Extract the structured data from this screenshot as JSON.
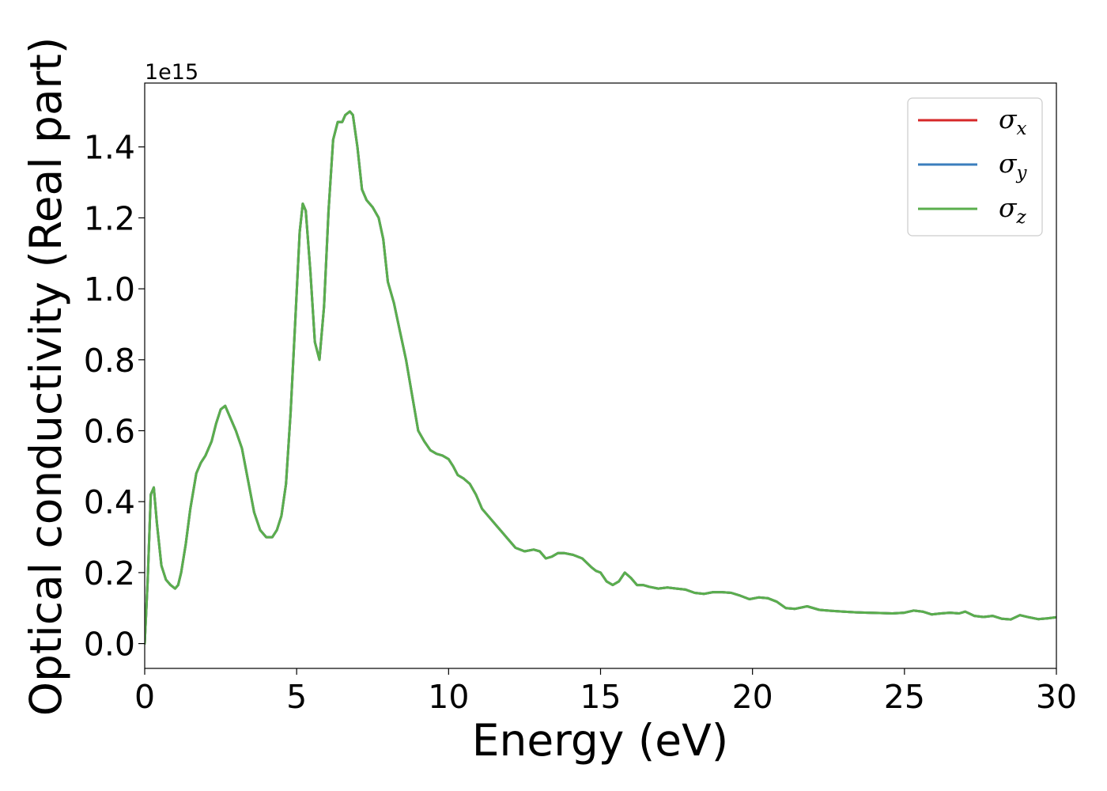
{
  "chart_data": {
    "type": "line",
    "xlabel": "Energy (eV)",
    "ylabel": "Optical conductivity (Real part)",
    "y_offset_text": "1e15",
    "xlim": [
      0,
      30
    ],
    "ylim": [
      -0.07,
      1.58
    ],
    "xticks": [
      0,
      5,
      10,
      15,
      20,
      25,
      30
    ],
    "xtick_labels": [
      "0",
      "5",
      "10",
      "15",
      "20",
      "25",
      "30"
    ],
    "yticks": [
      0.0,
      0.2,
      0.4,
      0.6,
      0.8,
      1.0,
      1.2,
      1.4
    ],
    "ytick_labels": [
      "0.0",
      "0.2",
      "0.4",
      "0.6",
      "0.8",
      "1.0",
      "1.2",
      "1.4"
    ],
    "grid": false,
    "legend_position": "top-right",
    "colors": {
      "sigma_x": "#d62728",
      "sigma_y": "#3b7ebd",
      "sigma_z": "#5aae4d"
    },
    "x": [
      0.0,
      0.1,
      0.2,
      0.3,
      0.4,
      0.55,
      0.7,
      0.85,
      1.0,
      1.1,
      1.2,
      1.35,
      1.5,
      1.7,
      1.85,
      2.0,
      2.2,
      2.35,
      2.5,
      2.65,
      2.8,
      3.0,
      3.2,
      3.4,
      3.6,
      3.8,
      4.0,
      4.2,
      4.35,
      4.5,
      4.65,
      4.8,
      4.95,
      5.1,
      5.2,
      5.3,
      5.45,
      5.6,
      5.75,
      5.9,
      6.05,
      6.2,
      6.35,
      6.5,
      6.6,
      6.75,
      6.85,
      7.0,
      7.15,
      7.3,
      7.5,
      7.7,
      7.85,
      8.0,
      8.2,
      8.4,
      8.6,
      8.8,
      9.0,
      9.2,
      9.4,
      9.6,
      9.8,
      10.0,
      10.15,
      10.3,
      10.5,
      10.7,
      10.9,
      11.1,
      11.3,
      11.6,
      11.9,
      12.2,
      12.5,
      12.8,
      13.0,
      13.2,
      13.4,
      13.6,
      13.8,
      14.1,
      14.4,
      14.7,
      14.85,
      15.0,
      15.2,
      15.4,
      15.6,
      15.8,
      16.0,
      16.2,
      16.4,
      16.6,
      16.9,
      17.2,
      17.5,
      17.8,
      18.1,
      18.4,
      18.7,
      19.0,
      19.3,
      19.6,
      19.9,
      20.2,
      20.5,
      20.8,
      21.1,
      21.4,
      21.8,
      22.2,
      22.6,
      23.0,
      23.4,
      23.8,
      24.2,
      24.6,
      25.0,
      25.3,
      25.6,
      25.9,
      26.2,
      26.5,
      26.8,
      27.0,
      27.3,
      27.6,
      27.9,
      28.2,
      28.5,
      28.8,
      29.1,
      29.4,
      29.7,
      30.0
    ],
    "series": [
      {
        "name": "σx",
        "name_base": "σ",
        "name_sub": "x",
        "color_key": "sigma_x",
        "values": [
          0.0,
          0.18,
          0.42,
          0.44,
          0.34,
          0.22,
          0.18,
          0.165,
          0.155,
          0.165,
          0.2,
          0.28,
          0.38,
          0.48,
          0.51,
          0.53,
          0.57,
          0.62,
          0.66,
          0.67,
          0.64,
          0.6,
          0.55,
          0.46,
          0.37,
          0.32,
          0.3,
          0.3,
          0.32,
          0.36,
          0.45,
          0.65,
          0.9,
          1.16,
          1.24,
          1.22,
          1.05,
          0.85,
          0.8,
          0.95,
          1.22,
          1.42,
          1.47,
          1.47,
          1.49,
          1.5,
          1.49,
          1.4,
          1.28,
          1.25,
          1.23,
          1.2,
          1.14,
          1.02,
          0.96,
          0.88,
          0.8,
          0.7,
          0.6,
          0.57,
          0.545,
          0.535,
          0.53,
          0.52,
          0.5,
          0.475,
          0.465,
          0.45,
          0.42,
          0.38,
          0.36,
          0.33,
          0.3,
          0.27,
          0.26,
          0.265,
          0.26,
          0.24,
          0.245,
          0.255,
          0.255,
          0.25,
          0.24,
          0.215,
          0.205,
          0.2,
          0.175,
          0.165,
          0.175,
          0.2,
          0.185,
          0.165,
          0.165,
          0.16,
          0.155,
          0.158,
          0.155,
          0.152,
          0.143,
          0.14,
          0.145,
          0.145,
          0.143,
          0.135,
          0.125,
          0.13,
          0.128,
          0.118,
          0.1,
          0.098,
          0.105,
          0.095,
          0.092,
          0.09,
          0.088,
          0.087,
          0.086,
          0.085,
          0.087,
          0.093,
          0.09,
          0.082,
          0.085,
          0.087,
          0.085,
          0.09,
          0.078,
          0.075,
          0.078,
          0.07,
          0.068,
          0.08,
          0.074,
          0.069,
          0.071,
          0.074
        ]
      },
      {
        "name": "σy",
        "name_base": "σ",
        "name_sub": "y",
        "color_key": "sigma_y",
        "values": [
          0.0,
          0.18,
          0.42,
          0.44,
          0.34,
          0.22,
          0.18,
          0.165,
          0.155,
          0.165,
          0.2,
          0.28,
          0.38,
          0.48,
          0.51,
          0.53,
          0.57,
          0.62,
          0.66,
          0.67,
          0.64,
          0.6,
          0.55,
          0.46,
          0.37,
          0.32,
          0.3,
          0.3,
          0.32,
          0.36,
          0.45,
          0.65,
          0.9,
          1.16,
          1.24,
          1.22,
          1.05,
          0.85,
          0.8,
          0.95,
          1.22,
          1.42,
          1.47,
          1.47,
          1.49,
          1.5,
          1.49,
          1.4,
          1.28,
          1.25,
          1.23,
          1.2,
          1.14,
          1.02,
          0.96,
          0.88,
          0.8,
          0.7,
          0.6,
          0.57,
          0.545,
          0.535,
          0.53,
          0.52,
          0.5,
          0.475,
          0.465,
          0.45,
          0.42,
          0.38,
          0.36,
          0.33,
          0.3,
          0.27,
          0.26,
          0.265,
          0.26,
          0.24,
          0.245,
          0.255,
          0.255,
          0.25,
          0.24,
          0.215,
          0.205,
          0.2,
          0.175,
          0.165,
          0.175,
          0.2,
          0.185,
          0.165,
          0.165,
          0.16,
          0.155,
          0.158,
          0.155,
          0.152,
          0.143,
          0.14,
          0.145,
          0.145,
          0.143,
          0.135,
          0.125,
          0.13,
          0.128,
          0.118,
          0.1,
          0.098,
          0.105,
          0.095,
          0.092,
          0.09,
          0.088,
          0.087,
          0.086,
          0.085,
          0.087,
          0.093,
          0.09,
          0.082,
          0.085,
          0.087,
          0.085,
          0.09,
          0.078,
          0.075,
          0.078,
          0.07,
          0.068,
          0.08,
          0.074,
          0.069,
          0.071,
          0.074
        ]
      },
      {
        "name": "σz",
        "name_base": "σ",
        "name_sub": "z",
        "color_key": "sigma_z",
        "values": [
          0.0,
          0.18,
          0.42,
          0.44,
          0.34,
          0.22,
          0.18,
          0.165,
          0.155,
          0.165,
          0.2,
          0.28,
          0.38,
          0.48,
          0.51,
          0.53,
          0.57,
          0.62,
          0.66,
          0.67,
          0.64,
          0.6,
          0.55,
          0.46,
          0.37,
          0.32,
          0.3,
          0.3,
          0.32,
          0.36,
          0.45,
          0.65,
          0.9,
          1.16,
          1.24,
          1.22,
          1.05,
          0.85,
          0.8,
          0.95,
          1.22,
          1.42,
          1.47,
          1.47,
          1.49,
          1.5,
          1.49,
          1.4,
          1.28,
          1.25,
          1.23,
          1.2,
          1.14,
          1.02,
          0.96,
          0.88,
          0.8,
          0.7,
          0.6,
          0.57,
          0.545,
          0.535,
          0.53,
          0.52,
          0.5,
          0.475,
          0.465,
          0.45,
          0.42,
          0.38,
          0.36,
          0.33,
          0.3,
          0.27,
          0.26,
          0.265,
          0.26,
          0.24,
          0.245,
          0.255,
          0.255,
          0.25,
          0.24,
          0.215,
          0.205,
          0.2,
          0.175,
          0.165,
          0.175,
          0.2,
          0.185,
          0.165,
          0.165,
          0.16,
          0.155,
          0.158,
          0.155,
          0.152,
          0.143,
          0.14,
          0.145,
          0.145,
          0.143,
          0.135,
          0.125,
          0.13,
          0.128,
          0.118,
          0.1,
          0.098,
          0.105,
          0.095,
          0.092,
          0.09,
          0.088,
          0.087,
          0.086,
          0.085,
          0.087,
          0.093,
          0.09,
          0.082,
          0.085,
          0.087,
          0.085,
          0.09,
          0.078,
          0.075,
          0.078,
          0.07,
          0.068,
          0.08,
          0.074,
          0.069,
          0.071,
          0.074
        ]
      }
    ]
  }
}
